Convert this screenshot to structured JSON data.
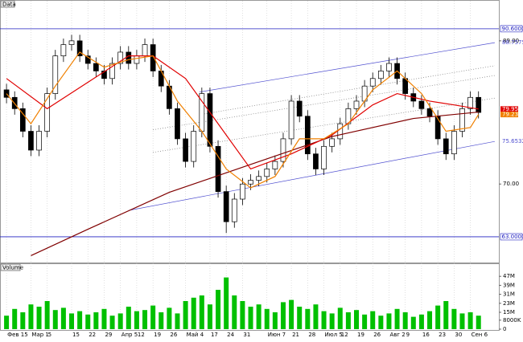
{
  "chart_data": {
    "type": "candlestick",
    "header": "Data",
    "volume_title": "Volume",
    "open": [
      82.5,
      81.5,
      80,
      77,
      74.5,
      77,
      82,
      87,
      88.5,
      89,
      87,
      86,
      85,
      84,
      86,
      87.5,
      86,
      87,
      88.5,
      85,
      83,
      80,
      76,
      73,
      77,
      82,
      75,
      69,
      65,
      68,
      70,
      70.5,
      71,
      72,
      73,
      76,
      81,
      79,
      74,
      72,
      75,
      76,
      78,
      80,
      81,
      83,
      84,
      85,
      86,
      84,
      82,
      81,
      80,
      79,
      76,
      74,
      77,
      80,
      81.5
    ],
    "high": [
      83.3,
      82.3,
      80.8,
      77.8,
      77.8,
      82.8,
      87.8,
      89.3,
      89.8,
      89.8,
      87.8,
      86.8,
      85.8,
      86.8,
      88.3,
      88.3,
      87.8,
      89.3,
      89.3,
      85.8,
      83.8,
      80.8,
      76.8,
      77.8,
      82.8,
      82.8,
      75.8,
      69.8,
      68.8,
      70.8,
      71.3,
      71.8,
      72.8,
      73.8,
      76.8,
      81.8,
      81.8,
      79.8,
      74.8,
      75.8,
      76.8,
      78.8,
      80.8,
      81.8,
      83.8,
      84.8,
      85.8,
      86.8,
      86.8,
      84.8,
      82.8,
      81.8,
      80.8,
      79.8,
      76.8,
      77.8,
      80.8,
      82.3,
      82.3
    ],
    "low": [
      80.7,
      79.2,
      76.2,
      73.7,
      73.7,
      76.2,
      81.2,
      86.2,
      87.7,
      86.2,
      85.2,
      84.2,
      83.2,
      83.2,
      85.2,
      85.2,
      85.2,
      86.2,
      84.2,
      82.2,
      79.2,
      75.2,
      72.2,
      72.2,
      76.2,
      74.2,
      68.2,
      63.5,
      64.2,
      67.2,
      69.2,
      69.7,
      70.2,
      71.2,
      72.2,
      75.2,
      78.2,
      73.2,
      71.2,
      71.2,
      74.2,
      75.2,
      77.2,
      79.2,
      80.2,
      82.2,
      83.2,
      84.2,
      83.2,
      81.2,
      80.2,
      79.2,
      78.2,
      75.2,
      73.2,
      73.2,
      76.2,
      79.2,
      78.7
    ],
    "close": [
      81.5,
      80,
      77,
      74.5,
      77,
      82,
      87,
      88.5,
      89,
      87,
      86,
      85,
      84,
      86,
      87.5,
      86,
      87,
      88.5,
      85,
      83,
      80,
      76,
      73,
      77,
      82,
      75,
      69,
      65,
      68,
      70,
      70.5,
      71,
      72,
      73,
      76,
      81,
      79,
      74,
      72,
      75,
      76,
      78,
      80,
      81,
      83,
      84,
      85,
      86,
      84,
      82,
      81,
      80,
      79,
      76,
      74,
      77,
      80,
      81.5,
      79.5
    ],
    "up_color": "#ffffff",
    "down_color": "#000000",
    "xlim": [
      -0.8,
      60.5
    ],
    "xticks": [
      {
        "value": 0,
        "label": "Фев 15"
      },
      {
        "value": 3,
        "label": "Мар 1"
      },
      5,
      {
        "value": 8,
        "label": "15"
      },
      {
        "value": 10,
        "label": "22"
      },
      {
        "value": 12,
        "label": "29"
      },
      {
        "value": 14,
        "label": "Апр 5"
      },
      {
        "value": 16,
        "label": "12"
      },
      {
        "value": 18,
        "label": "19"
      },
      {
        "value": 20,
        "label": "26"
      },
      {
        "value": 22,
        "label": "Май 4"
      },
      {
        "value": 25,
        "label": "17"
      },
      {
        "value": 27,
        "label": "24"
      },
      {
        "value": 29,
        "label": "31"
      },
      {
        "value": 32,
        "label": "Июн 7"
      },
      {
        "value": 35,
        "label": "21"
      },
      {
        "value": 37,
        "label": "28"
      },
      {
        "value": 39,
        "label": "Июл 5"
      },
      {
        "value": 41,
        "label": "12"
      },
      {
        "value": 43,
        "label": "19"
      },
      {
        "value": 45,
        "label": "26"
      },
      {
        "value": 47,
        "label": "Авг 2"
      },
      {
        "value": 49,
        "label": "9"
      },
      {
        "value": 51,
        "label": "16"
      },
      {
        "value": 53,
        "label": "23"
      },
      {
        "value": 55,
        "label": "30"
      },
      {
        "value": 57,
        "label": "Сен 6"
      }
    ],
    "ylim": [
      59.8,
      92.5
    ],
    "yticks": [
      {
        "value": 89,
        "label": "89.00"
      },
      {
        "value": 70,
        "label": "70.00"
      }
    ],
    "levels": [
      {
        "value": 90.6,
        "label": "90.6000"
      },
      {
        "value": 63,
        "label": "63.0000"
      }
    ],
    "level_color": "#2020c0",
    "series": [
      {
        "color": "#800000",
        "x": [
          3,
          10,
          20,
          30,
          40,
          50,
          58
        ],
        "values": [
          60.5,
          64,
          68.9,
          72.6,
          76.3,
          78.7,
          79.55
        ],
        "last": 79.55
      },
      {
        "color": "#e00000",
        "x": [
          0,
          5,
          10,
          15,
          18,
          22,
          26,
          30,
          35,
          40,
          45,
          48,
          52,
          55,
          58
        ],
        "values": [
          84,
          80,
          83.5,
          87,
          87,
          84,
          78,
          72,
          74,
          76.5,
          80.5,
          82,
          81,
          80.5,
          79.95
        ],
        "last": 79.95
      },
      {
        "color": "#f08000",
        "x": [
          0,
          3,
          6,
          9,
          12,
          15,
          18,
          21,
          24,
          27,
          30,
          33,
          36,
          39,
          42,
          45,
          48,
          51,
          54,
          57,
          58
        ],
        "values": [
          82,
          78,
          83,
          87.5,
          85.5,
          86.5,
          87,
          81,
          77,
          72,
          69.5,
          71,
          76,
          76,
          78,
          82.5,
          85,
          82,
          77,
          77.5,
          79.23
        ],
        "last": 79.23
      }
    ],
    "channels": [
      {
        "style": "solid",
        "x": [
          15,
          60
        ],
        "values": [
          66.5,
          75.6532
        ],
        "last": 75.6532
      },
      {
        "style": "solid",
        "x": [
          23.7,
          60
        ],
        "values": [
          82.2,
          88.7575
        ],
        "last": 88.7575
      },
      {
        "style": "dotted",
        "x": [
          18,
          60
        ],
        "values": [
          74.2,
          81.4
        ]
      },
      {
        "style": "dotted",
        "x": [
          18,
          60
        ],
        "values": [
          77.2,
          84.4
        ]
      },
      {
        "style": "dotted",
        "x": [
          23.7,
          60
        ],
        "values": [
          79.2,
          85.7
        ]
      }
    ],
    "channel_color": "#5050d0",
    "volume": {
      "color": "#00c000",
      "values": [
        12,
        18,
        15,
        22,
        20,
        25,
        17,
        19,
        14,
        16,
        13,
        15,
        18,
        12,
        14,
        20,
        16,
        17,
        21,
        15,
        19,
        14,
        25,
        28,
        30,
        22,
        35,
        46,
        30,
        25,
        20,
        22,
        18,
        15,
        24,
        26,
        20,
        18,
        22,
        16,
        14,
        19,
        15,
        17,
        13,
        16,
        12,
        14,
        18,
        15,
        11,
        13,
        16,
        21,
        25,
        18,
        14,
        15,
        12
      ],
      "ylim": [
        0,
        50
      ],
      "yticks": [
        {
          "value": 47,
          "label": "47M"
        },
        {
          "value": 39,
          "label": "39M"
        },
        {
          "value": 31,
          "label": "31M"
        },
        {
          "value": 23,
          "label": "23M"
        },
        {
          "value": 15,
          "label": "15M"
        },
        {
          "value": 8,
          "label": "8000K"
        },
        0
      ]
    }
  }
}
